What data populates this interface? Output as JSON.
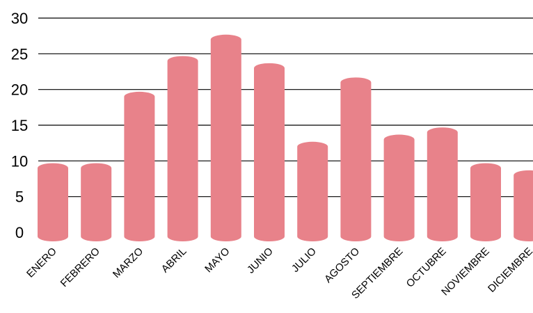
{
  "chart_data": {
    "type": "bar",
    "categories": [
      "ENERO",
      "FEBRERO",
      "MARZO",
      "ABRIL",
      "MAYO",
      "JUNIO",
      "JULIO",
      "AGOSTO",
      "SEPTIEMBRE",
      "OCTUBRE",
      "NOVIEMBRE",
      "DICIEMBRE"
    ],
    "values": [
      9,
      9,
      19,
      24,
      27,
      23,
      12,
      21,
      13,
      14,
      9,
      8
    ],
    "yticks": [
      "0",
      "5",
      "10",
      "15",
      "20",
      "25",
      "30"
    ],
    "ylim": [
      0,
      30
    ],
    "grid": true,
    "bar_color": "#e8828a",
    "grid_color": "#000000"
  }
}
